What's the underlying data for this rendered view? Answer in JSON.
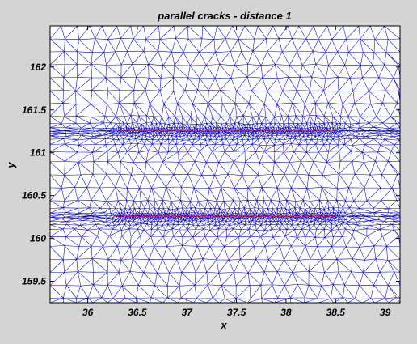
{
  "chart_data": {
    "type": "mesh",
    "title": "parallel cracks - distance 1",
    "xlabel": "x",
    "ylabel": "y",
    "xlim": [
      35.62,
      39.15
    ],
    "ylim": [
      159.25,
      162.48
    ],
    "xticks": [
      36,
      36.5,
      37,
      37.5,
      38,
      38.5,
      39
    ],
    "xtick_labels": [
      "36",
      "36.5",
      "37",
      "37.5",
      "38",
      "38.5",
      "39"
    ],
    "yticks": [
      159.5,
      160,
      160.5,
      161,
      161.5,
      162
    ],
    "ytick_labels": [
      "159.5",
      "160",
      "160.5",
      "161",
      "161.5",
      "162"
    ],
    "cracks": [
      {
        "x": [
          36.3,
          38.5
        ],
        "y": 161.26
      },
      {
        "x": [
          36.3,
          38.5
        ],
        "y": 160.26
      }
    ],
    "colors": {
      "background": "#d4d4d4",
      "plot_background": "#ffffff",
      "mesh": "#0000c8",
      "crack": "#ff0000"
    }
  }
}
